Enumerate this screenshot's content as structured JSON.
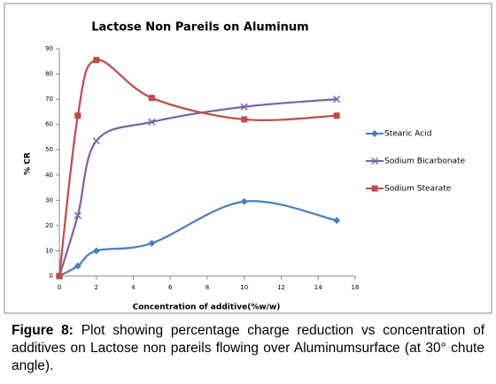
{
  "chart_data": {
    "type": "line",
    "title": "Lactose Non Pareils on Aluminum",
    "x_label": "Concentration of additive(%w/w)",
    "y_label": "% CR",
    "x": [
      0,
      1,
      2,
      5,
      10,
      15
    ],
    "series": [
      {
        "name": "Stearic Acid",
        "color": "#4a7ebb",
        "marker": "diamond",
        "values": [
          0,
          4,
          10,
          13,
          29.5,
          22
        ]
      },
      {
        "name": "Sodium Bicarbonate",
        "color": "#7d60a0",
        "marker": "x",
        "values": [
          0,
          24,
          53.5,
          61,
          67,
          70
        ]
      },
      {
        "name": "Sodium Stearate",
        "color": "#be4b48",
        "marker": "square",
        "values": [
          0,
          63.5,
          85.5,
          70.5,
          62,
          63.5
        ]
      }
    ],
    "xlim": [
      0,
      16
    ],
    "xticks": [
      0,
      2,
      4,
      6,
      8,
      10,
      12,
      14,
      16
    ],
    "ylim": [
      0,
      90
    ],
    "yticks": [
      0,
      10,
      20,
      30,
      40,
      50,
      60,
      70,
      80,
      90
    ],
    "smooth": true,
    "legend": "right"
  },
  "caption": {
    "label": "Figure 8:",
    "text": "Plot showing percentage charge reduction vs concentration of additives on Lactose non pareils flowing over Aluminumsurface (at 30° chute angle)."
  }
}
